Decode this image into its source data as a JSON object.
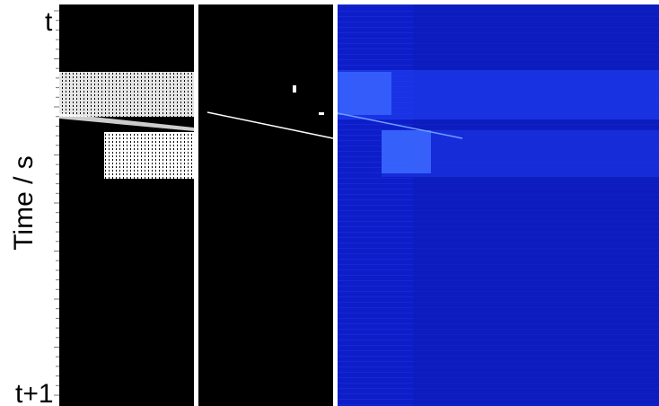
{
  "axis": {
    "label": "Time / s",
    "start_label": "t",
    "end_label": "t+1"
  }
}
